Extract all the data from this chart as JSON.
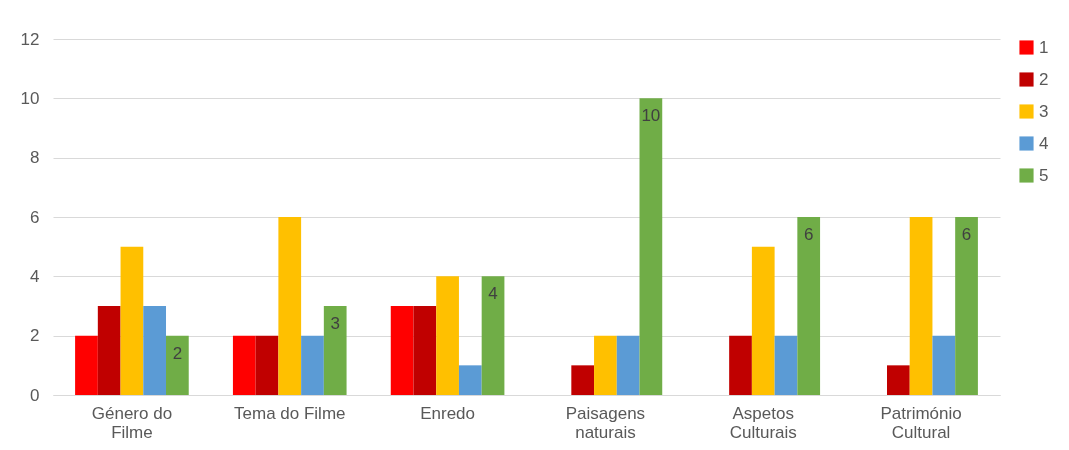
{
  "chart_data": {
    "type": "bar",
    "categories": [
      "Género do Filme",
      "Tema do Filme",
      "Enredo",
      "Paisagens naturais",
      "Aspetos Culturais",
      "Património Cultural"
    ],
    "series": [
      {
        "name": "1",
        "color": "#ff0000",
        "values": [
          2,
          2,
          3,
          0,
          0,
          0
        ]
      },
      {
        "name": "2",
        "color": "#c00000",
        "values": [
          3,
          2,
          3,
          1,
          2,
          1
        ]
      },
      {
        "name": "3",
        "color": "#ffc000",
        "values": [
          5,
          6,
          4,
          2,
          5,
          6
        ]
      },
      {
        "name": "4",
        "color": "#5b9bd5",
        "values": [
          3,
          2,
          1,
          2,
          2,
          2
        ]
      },
      {
        "name": "5",
        "color": "#70ad47",
        "values": [
          2,
          3,
          4,
          10,
          6,
          6
        ],
        "value_labels": [
          "2",
          "3",
          "4",
          "10",
          "6",
          "6"
        ]
      }
    ],
    "ylim": [
      0,
      12
    ],
    "yticks": [
      0,
      2,
      4,
      6,
      8,
      10,
      12
    ],
    "grid": "y",
    "legend": "right"
  }
}
